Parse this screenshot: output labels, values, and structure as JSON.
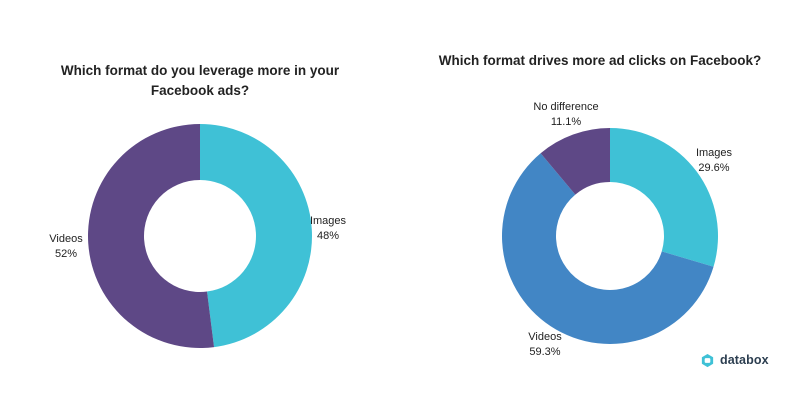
{
  "chart_data": [
    {
      "type": "pie",
      "title_lines": [
        "Which format do you leverage more in your",
        "Facebook ads?"
      ],
      "categories": [
        "Images",
        "Videos"
      ],
      "values": [
        48,
        52
      ],
      "value_labels": [
        "48%",
        "52%"
      ],
      "colors": [
        "#3fc1d6",
        "#5e4886"
      ],
      "legend": "none"
    },
    {
      "type": "pie",
      "title_lines": [
        "Which format drives more ad clicks on Facebook?"
      ],
      "categories": [
        "Images",
        "Videos",
        "No difference"
      ],
      "values": [
        29.6,
        59.3,
        11.1
      ],
      "value_labels": [
        "29.6%",
        "59.3%",
        "11.1%"
      ],
      "colors": [
        "#3fc1d6",
        "#4286c5",
        "#5e4886"
      ],
      "legend": "none"
    }
  ],
  "brand": {
    "name": "databox",
    "color": "#2c3e50",
    "icon": "databox-logo-icon"
  }
}
